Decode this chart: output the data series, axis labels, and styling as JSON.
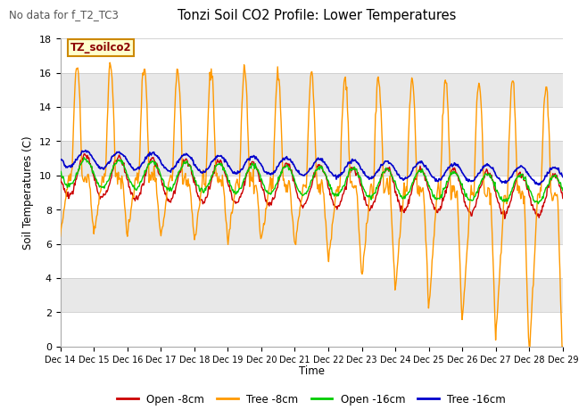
{
  "title": "Tonzi Soil CO2 Profile: Lower Temperatures",
  "subtitle": "No data for f_T2_TC3",
  "ylabel": "Soil Temperatures (C)",
  "xlabel": "Time",
  "ylim": [
    0,
    18
  ],
  "yticks": [
    0,
    2,
    4,
    6,
    8,
    10,
    12,
    14,
    16,
    18
  ],
  "x_tick_labels": [
    "Dec 14",
    "Dec 15",
    "Dec 16",
    "Dec 17",
    "Dec 18",
    "Dec 19",
    "Dec 20",
    "Dec 21",
    "Dec 22",
    "Dec 23",
    "Dec 24",
    "Dec 25",
    "Dec 26",
    "Dec 27",
    "Dec 28",
    "Dec 29"
  ],
  "annotation_text": "TZ_soilco2",
  "legend_entries": [
    "Open -8cm",
    "Tree -8cm",
    "Open -16cm",
    "Tree -16cm"
  ],
  "colors": {
    "open8": "#cc0000",
    "tree8": "#ff9900",
    "open16": "#00cc00",
    "tree16": "#0000cc"
  },
  "bg_color": "#ffffff",
  "plot_bg_dark": "#e0e0e0",
  "plot_bg_light": "#f0f0f0",
  "n_points": 720,
  "figsize": [
    6.4,
    4.8
  ],
  "dpi": 100
}
